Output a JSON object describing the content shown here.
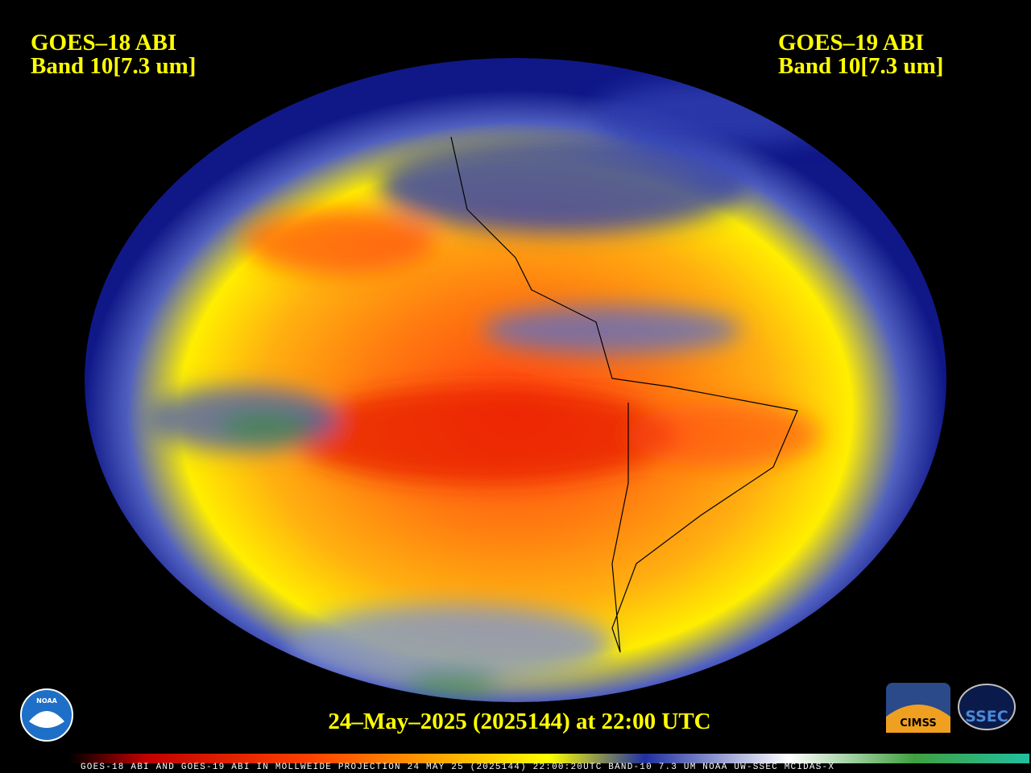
{
  "header": {
    "left": {
      "satellite": "GOES–18 ABI",
      "band": "Band 10[7.3 um]"
    },
    "right": {
      "satellite": "GOES–19 ABI",
      "band": "Band 10[7.3 um]"
    }
  },
  "timestamp": "24–May–2025 (2025144) at 22:00 UTC",
  "footer": "GOES-18 ABI AND GOES-19 ABI IN MOLLWEIDE PROJECTION 24 MAY 25 (2025144) 22:00:20UTC BAND-10 7.3 UM NOAA UW-SSEC MCIDAS-X",
  "logos": {
    "noaa": "NOAA",
    "cimss": "CIMSS",
    "ssec": "SSEC"
  }
}
